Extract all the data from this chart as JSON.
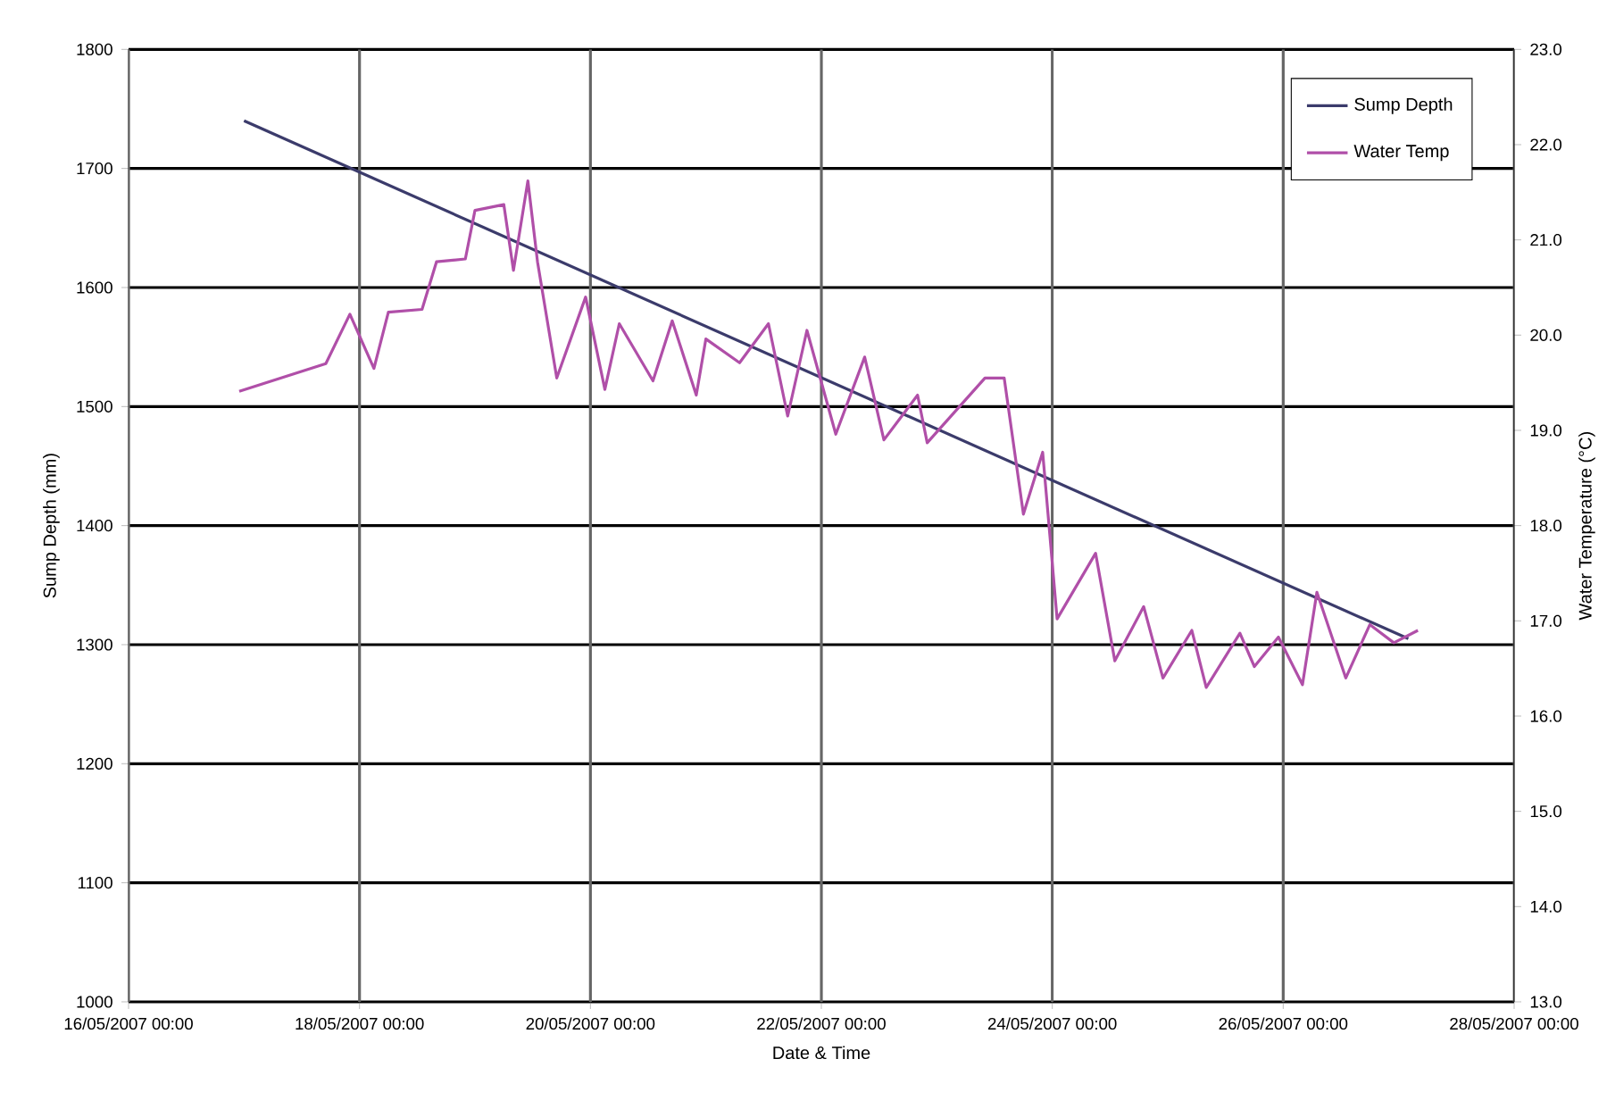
{
  "chart_data": {
    "type": "line",
    "xlabel": "Date & Time",
    "ylabel": "Sump Depth (mm)",
    "y2label": "Water Temperature (°C)",
    "xlim": [
      "2007-05-16T00:00",
      "2007-05-28T00:00"
    ],
    "xticks": [
      {
        "value": "2007-05-16T00:00",
        "label": "16/05/2007 00:00"
      },
      {
        "value": "2007-05-18T00:00",
        "label": "18/05/2007 00:00"
      },
      {
        "value": "2007-05-20T00:00",
        "label": "20/05/2007 00:00"
      },
      {
        "value": "2007-05-22T00:00",
        "label": "22/05/2007 00:00"
      },
      {
        "value": "2007-05-24T00:00",
        "label": "24/05/2007 00:00"
      },
      {
        "value": "2007-05-26T00:00",
        "label": "26/05/2007 00:00"
      },
      {
        "value": "2007-05-28T00:00",
        "label": "28/05/2007 00:00"
      }
    ],
    "ylim": [
      1000,
      1800
    ],
    "yticks": [
      1000,
      1100,
      1200,
      1300,
      1400,
      1500,
      1600,
      1700,
      1800
    ],
    "y2lim": [
      13,
      23
    ],
    "y2ticks": [
      {
        "value": 13,
        "label": "13.0"
      },
      {
        "value": 14,
        "label": "14.0"
      },
      {
        "value": 15,
        "label": "15.0"
      },
      {
        "value": 16,
        "label": "16.0"
      },
      {
        "value": 17,
        "label": "17.0"
      },
      {
        "value": 18,
        "label": "18.0"
      },
      {
        "value": 19,
        "label": "19.0"
      },
      {
        "value": 20,
        "label": "20.0"
      },
      {
        "value": 21,
        "label": "21.0"
      },
      {
        "value": 22,
        "label": "22.0"
      },
      {
        "value": 23,
        "label": "23.0"
      }
    ],
    "grid": true,
    "legend": "top right",
    "marker": "none",
    "line_style": "solid",
    "series": [
      {
        "name": "Sump Depth",
        "color": "#3b3b6b",
        "x": [
          "2007-05-17T00:00",
          "2007-05-27T02:00"
        ],
        "values": [
          1740,
          1305
        ]
      },
      {
        "name": "Water Temp",
        "color": "#b04fa8",
        "axis": "y2",
        "x": [
          "2007-05-16T23:00",
          "2007-05-17T17:00",
          "2007-05-17T22:00",
          "2007-05-18T03:00",
          "2007-05-18T06:00",
          "2007-05-18T13:00",
          "2007-05-18T16:00",
          "2007-05-18T22:00",
          "2007-05-19T00:00",
          "2007-05-19T06:00",
          "2007-05-19T08:00",
          "2007-05-19T11:00",
          "2007-05-19T13:00",
          "2007-05-19T17:00",
          "2007-05-19T23:00",
          "2007-05-20T03:00",
          "2007-05-20T06:00",
          "2007-05-20T13:00",
          "2007-05-20T17:00",
          "2007-05-20T22:00",
          "2007-05-21T00:00",
          "2007-05-21T07:00",
          "2007-05-21T13:00",
          "2007-05-21T17:00",
          "2007-05-21T21:00",
          "2007-05-22T03:00",
          "2007-05-22T09:00",
          "2007-05-22T13:00",
          "2007-05-22T20:00",
          "2007-05-22T22:00",
          "2007-05-23T10:00",
          "2007-05-23T14:00",
          "2007-05-23T18:00",
          "2007-05-23T22:00",
          "2007-05-24T01:00",
          "2007-05-24T09:00",
          "2007-05-24T13:00",
          "2007-05-24T19:00",
          "2007-05-24T23:00",
          "2007-05-25T05:00",
          "2007-05-25T08:00",
          "2007-05-25T15:00",
          "2007-05-25T18:00",
          "2007-05-25T23:00",
          "2007-05-26T04:00",
          "2007-05-26T07:00",
          "2007-05-26T13:00",
          "2007-05-26T18:00",
          "2007-05-26T23:00",
          "2007-05-27T04:00"
        ],
        "values": [
          19.41,
          19.7,
          20.22,
          19.65,
          20.24,
          20.27,
          20.77,
          20.8,
          21.31,
          21.37,
          20.68,
          21.62,
          20.77,
          19.55,
          20.4,
          19.43,
          20.12,
          19.52,
          20.15,
          19.37,
          19.96,
          19.71,
          20.12,
          19.15,
          20.05,
          18.96,
          19.77,
          18.9,
          19.37,
          18.87,
          19.55,
          19.55,
          18.12,
          18.77,
          17.02,
          17.71,
          16.58,
          17.15,
          16.4,
          16.9,
          16.3,
          16.87,
          16.52,
          16.83,
          16.33,
          17.3,
          16.4,
          16.96,
          16.77,
          16.9
        ]
      }
    ]
  }
}
